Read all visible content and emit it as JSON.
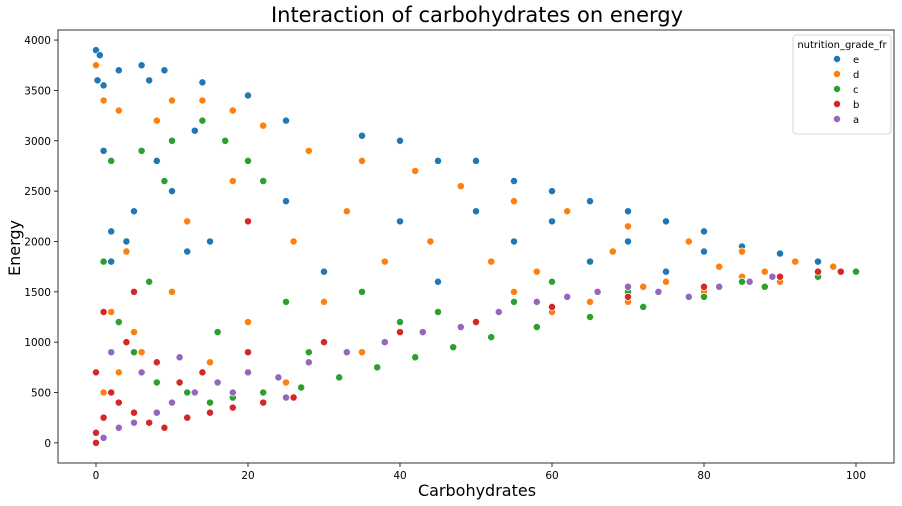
{
  "chart_data": {
    "type": "scatter",
    "title": "Interaction of carbohydrates on energy",
    "xlabel": "Carbohydrates",
    "ylabel": "Energy",
    "xlim": [
      -5,
      105
    ],
    "ylim": [
      -200,
      4100
    ],
    "x_ticks": [
      0,
      20,
      40,
      60,
      80,
      100
    ],
    "y_ticks": [
      0,
      500,
      1000,
      1500,
      2000,
      2500,
      3000,
      3500,
      4000
    ],
    "grid": false,
    "legend": {
      "title": "nutrition_grade_fr",
      "placement": "top-right",
      "entries": [
        {
          "label": "e",
          "color": "#1f77b4"
        },
        {
          "label": "d",
          "color": "#ff7f0e"
        },
        {
          "label": "c",
          "color": "#2ca02c"
        },
        {
          "label": "b",
          "color": "#d62728"
        },
        {
          "label": "a",
          "color": "#9467bd"
        }
      ]
    },
    "series": [
      {
        "name": "e",
        "color": "#1f77b4",
        "points": [
          [
            0,
            3900
          ],
          [
            0.5,
            3850
          ],
          [
            0.2,
            3600
          ],
          [
            1,
            3550
          ],
          [
            3,
            3700
          ],
          [
            6,
            3750
          ],
          [
            7,
            3600
          ],
          [
            9,
            3700
          ],
          [
            14,
            3580
          ],
          [
            20,
            3450
          ],
          [
            13,
            3100
          ],
          [
            25,
            3200
          ],
          [
            35,
            3050
          ],
          [
            40,
            3000
          ],
          [
            45,
            2800
          ],
          [
            50,
            2800
          ],
          [
            55,
            2600
          ],
          [
            60,
            2500
          ],
          [
            65,
            2400
          ],
          [
            70,
            2300
          ],
          [
            75,
            2200
          ],
          [
            80,
            2100
          ],
          [
            85,
            1950
          ],
          [
            90,
            1880
          ],
          [
            95,
            1800
          ],
          [
            2,
            2100
          ],
          [
            5,
            2300
          ],
          [
            10,
            2500
          ],
          [
            15,
            2000
          ],
          [
            30,
            1700
          ],
          [
            45,
            1600
          ],
          [
            50,
            2300
          ],
          [
            60,
            2200
          ],
          [
            70,
            2000
          ],
          [
            80,
            1900
          ],
          [
            2,
            1800
          ],
          [
            8,
            2800
          ],
          [
            25,
            2400
          ],
          [
            40,
            2200
          ],
          [
            55,
            2000
          ],
          [
            65,
            1800
          ],
          [
            75,
            1700
          ],
          [
            1,
            2900
          ],
          [
            4,
            2000
          ],
          [
            12,
            1900
          ]
        ]
      },
      {
        "name": "d",
        "color": "#ff7f0e",
        "points": [
          [
            0,
            3750
          ],
          [
            1,
            3400
          ],
          [
            3,
            3300
          ],
          [
            8,
            3200
          ],
          [
            10,
            3400
          ],
          [
            14,
            3400
          ],
          [
            18,
            3300
          ],
          [
            22,
            3150
          ],
          [
            28,
            2900
          ],
          [
            35,
            2800
          ],
          [
            42,
            2700
          ],
          [
            48,
            2550
          ],
          [
            55,
            2400
          ],
          [
            62,
            2300
          ],
          [
            70,
            2150
          ],
          [
            78,
            2000
          ],
          [
            85,
            1900
          ],
          [
            92,
            1800
          ],
          [
            97,
            1750
          ],
          [
            100,
            1700
          ],
          [
            2,
            1300
          ],
          [
            5,
            1100
          ],
          [
            10,
            1500
          ],
          [
            20,
            1200
          ],
          [
            30,
            1400
          ],
          [
            40,
            1100
          ],
          [
            50,
            1200
          ],
          [
            60,
            1300
          ],
          [
            70,
            1400
          ],
          [
            80,
            1500
          ],
          [
            90,
            1600
          ],
          [
            3,
            700
          ],
          [
            6,
            900
          ],
          [
            15,
            800
          ],
          [
            25,
            600
          ],
          [
            35,
            900
          ],
          [
            45,
            1300
          ],
          [
            55,
            1500
          ],
          [
            65,
            1400
          ],
          [
            75,
            1600
          ],
          [
            85,
            1650
          ],
          [
            1,
            500
          ],
          [
            4,
            1900
          ],
          [
            12,
            2200
          ],
          [
            18,
            2600
          ],
          [
            26,
            2000
          ],
          [
            33,
            2300
          ],
          [
            38,
            1800
          ],
          [
            44,
            2000
          ],
          [
            52,
            1800
          ],
          [
            58,
            1700
          ],
          [
            68,
            1900
          ],
          [
            72,
            1550
          ],
          [
            82,
            1750
          ],
          [
            88,
            1700
          ]
        ]
      },
      {
        "name": "c",
        "color": "#2ca02c",
        "points": [
          [
            2,
            2800
          ],
          [
            6,
            2900
          ],
          [
            10,
            3000
          ],
          [
            14,
            3200
          ],
          [
            17,
            3000
          ],
          [
            20,
            2800
          ],
          [
            22,
            2600
          ],
          [
            9,
            2600
          ],
          [
            3,
            1200
          ],
          [
            5,
            900
          ],
          [
            8,
            600
          ],
          [
            12,
            500
          ],
          [
            15,
            400
          ],
          [
            18,
            450
          ],
          [
            22,
            500
          ],
          [
            27,
            550
          ],
          [
            32,
            650
          ],
          [
            37,
            750
          ],
          [
            42,
            850
          ],
          [
            47,
            950
          ],
          [
            52,
            1050
          ],
          [
            58,
            1150
          ],
          [
            65,
            1250
          ],
          [
            72,
            1350
          ],
          [
            80,
            1450
          ],
          [
            88,
            1550
          ],
          [
            95,
            1650
          ],
          [
            100,
            1700
          ],
          [
            25,
            1400
          ],
          [
            35,
            1500
          ],
          [
            45,
            1300
          ],
          [
            55,
            1400
          ],
          [
            1,
            1800
          ],
          [
            7,
            1600
          ],
          [
            16,
            1100
          ],
          [
            28,
            900
          ],
          [
            40,
            1200
          ],
          [
            60,
            1600
          ],
          [
            70,
            1500
          ],
          [
            85,
            1600
          ]
        ]
      },
      {
        "name": "b",
        "color": "#d62728",
        "points": [
          [
            0,
            0
          ],
          [
            0,
            100
          ],
          [
            1,
            250
          ],
          [
            2,
            500
          ],
          [
            3,
            400
          ],
          [
            5,
            300
          ],
          [
            7,
            200
          ],
          [
            9,
            150
          ],
          [
            12,
            250
          ],
          [
            15,
            300
          ],
          [
            18,
            350
          ],
          [
            22,
            400
          ],
          [
            26,
            450
          ],
          [
            0,
            700
          ],
          [
            2,
            900
          ],
          [
            4,
            1000
          ],
          [
            8,
            800
          ],
          [
            11,
            600
          ],
          [
            14,
            700
          ],
          [
            20,
            900
          ],
          [
            30,
            1000
          ],
          [
            40,
            1100
          ],
          [
            50,
            1200
          ],
          [
            60,
            1350
          ],
          [
            70,
            1450
          ],
          [
            80,
            1550
          ],
          [
            90,
            1650
          ],
          [
            95,
            1700
          ],
          [
            98,
            1700
          ],
          [
            1,
            1300
          ],
          [
            5,
            1500
          ],
          [
            20,
            2200
          ]
        ]
      },
      {
        "name": "a",
        "color": "#9467bd",
        "points": [
          [
            1,
            50
          ],
          [
            3,
            150
          ],
          [
            5,
            200
          ],
          [
            8,
            300
          ],
          [
            10,
            400
          ],
          [
            13,
            500
          ],
          [
            16,
            600
          ],
          [
            20,
            700
          ],
          [
            24,
            650
          ],
          [
            28,
            800
          ],
          [
            33,
            900
          ],
          [
            38,
            1000
          ],
          [
            43,
            1100
          ],
          [
            48,
            1150
          ],
          [
            53,
            1300
          ],
          [
            58,
            1400
          ],
          [
            62,
            1450
          ],
          [
            66,
            1500
          ],
          [
            70,
            1550
          ],
          [
            74,
            1500
          ],
          [
            78,
            1450
          ],
          [
            82,
            1550
          ],
          [
            86,
            1600
          ],
          [
            89,
            1650
          ],
          [
            2,
            900
          ],
          [
            6,
            700
          ],
          [
            11,
            850
          ],
          [
            18,
            500
          ],
          [
            25,
            450
          ]
        ]
      }
    ]
  }
}
